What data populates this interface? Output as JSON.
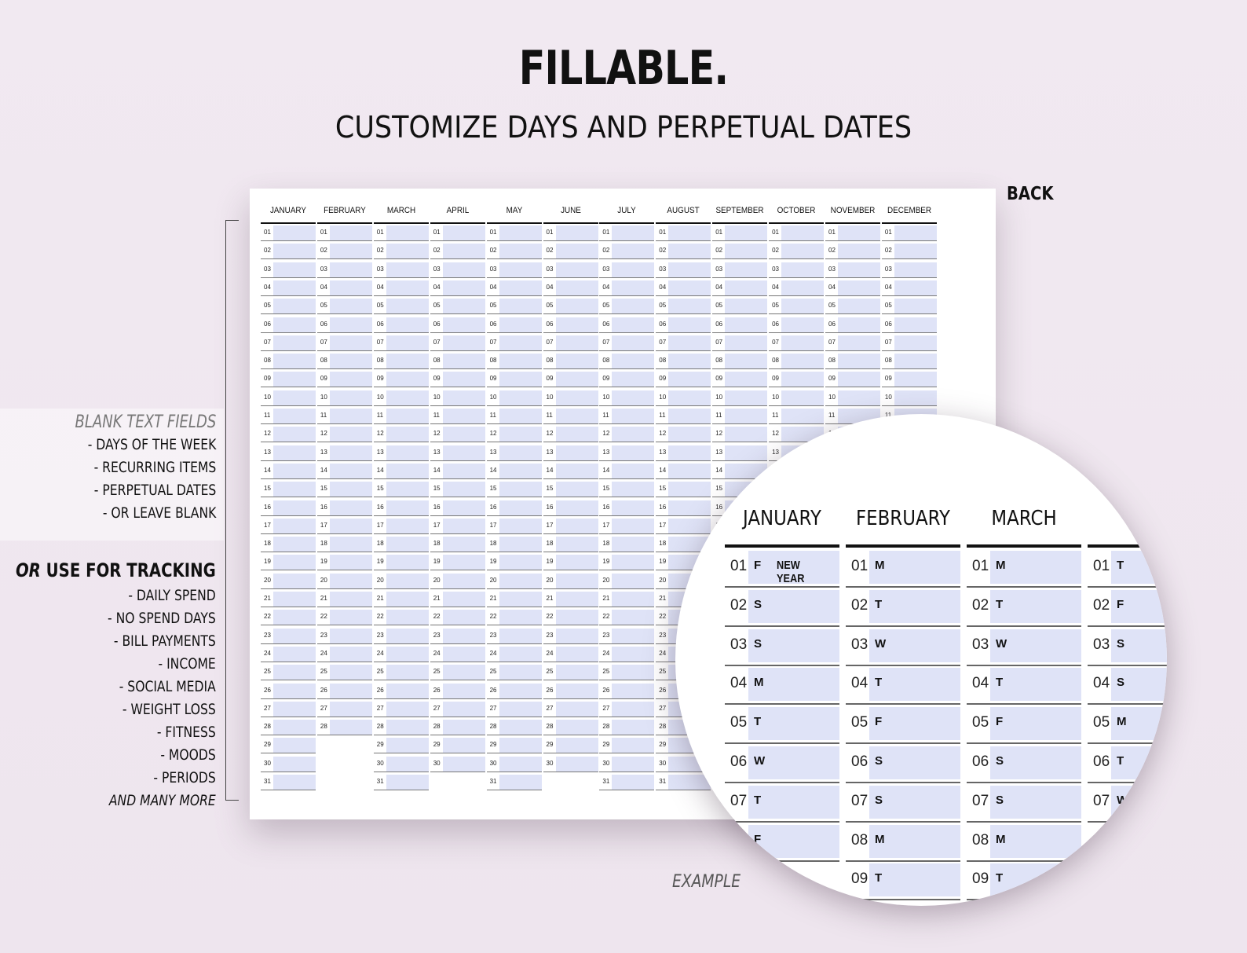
{
  "header": {
    "title": "FILLABLE.",
    "subtitle": "CUSTOMIZE DAYS AND PERPETUAL DATES"
  },
  "back_label": "BACK",
  "example_label": "EXAMPLE",
  "calendar": {
    "months": [
      {
        "name": "JANUARY",
        "days": 31
      },
      {
        "name": "FEBRUARY",
        "days": 28
      },
      {
        "name": "MARCH",
        "days": 31
      },
      {
        "name": "APRIL",
        "days": 30
      },
      {
        "name": "MAY",
        "days": 31
      },
      {
        "name": "JUNE",
        "days": 30
      },
      {
        "name": "JULY",
        "days": 31
      },
      {
        "name": "AUGUST",
        "days": 31
      },
      {
        "name": "SEPTEMBER",
        "days": 30
      },
      {
        "name": "OCTOBER",
        "days": 31
      },
      {
        "name": "NOVEMBER",
        "days": 30
      },
      {
        "name": "DECEMBER",
        "days": 31
      }
    ]
  },
  "sidebar": {
    "blank_heading": "BLANK TEXT FIELDS",
    "blank_items": [
      "- DAYS OF THE WEEK",
      "- RECURRING ITEMS",
      "- PERPETUAL DATES",
      "- OR LEAVE BLANK"
    ],
    "tracking_heading_or": "OR",
    "tracking_heading_rest": " USE FOR TRACKING",
    "tracking_items": [
      "- DAILY SPEND",
      "- NO SPEND DAYS",
      "- BILL PAYMENTS",
      "- INCOME",
      "- SOCIAL MEDIA",
      "- WEIGHT LOSS",
      "- FITNESS",
      "- MOODS",
      "- PERIODS"
    ],
    "footer": "AND MANY MORE"
  },
  "zoom": {
    "columns": [
      {
        "name": "JANUARY",
        "rows": [
          {
            "num": "01",
            "wd": "F",
            "note": "NEW YEAR"
          },
          {
            "num": "02",
            "wd": "S"
          },
          {
            "num": "03",
            "wd": "S"
          },
          {
            "num": "04",
            "wd": "M"
          },
          {
            "num": "05",
            "wd": "T"
          },
          {
            "num": "06",
            "wd": "W"
          },
          {
            "num": "07",
            "wd": "T"
          },
          {
            "num": "",
            "wd": "F"
          }
        ]
      },
      {
        "name": "FEBRUARY",
        "rows": [
          {
            "num": "01",
            "wd": "M"
          },
          {
            "num": "02",
            "wd": "T"
          },
          {
            "num": "03",
            "wd": "W"
          },
          {
            "num": "04",
            "wd": "T"
          },
          {
            "num": "05",
            "wd": "F"
          },
          {
            "num": "06",
            "wd": "S"
          },
          {
            "num": "07",
            "wd": "S"
          },
          {
            "num": "08",
            "wd": "M"
          },
          {
            "num": "09",
            "wd": "T"
          }
        ]
      },
      {
        "name": "MARCH",
        "rows": [
          {
            "num": "01",
            "wd": "M"
          },
          {
            "num": "02",
            "wd": "T"
          },
          {
            "num": "03",
            "wd": "W"
          },
          {
            "num": "04",
            "wd": "T"
          },
          {
            "num": "05",
            "wd": "F"
          },
          {
            "num": "06",
            "wd": "S"
          },
          {
            "num": "07",
            "wd": "S"
          },
          {
            "num": "08",
            "wd": "M"
          },
          {
            "num": "09",
            "wd": "T"
          }
        ]
      },
      {
        "name": "A",
        "rows": [
          {
            "num": "01",
            "wd": "T"
          },
          {
            "num": "02",
            "wd": "F"
          },
          {
            "num": "03",
            "wd": "S"
          },
          {
            "num": "04",
            "wd": "S"
          },
          {
            "num": "05",
            "wd": "M"
          },
          {
            "num": "06",
            "wd": "T"
          },
          {
            "num": "07",
            "wd": "W"
          }
        ]
      }
    ]
  }
}
